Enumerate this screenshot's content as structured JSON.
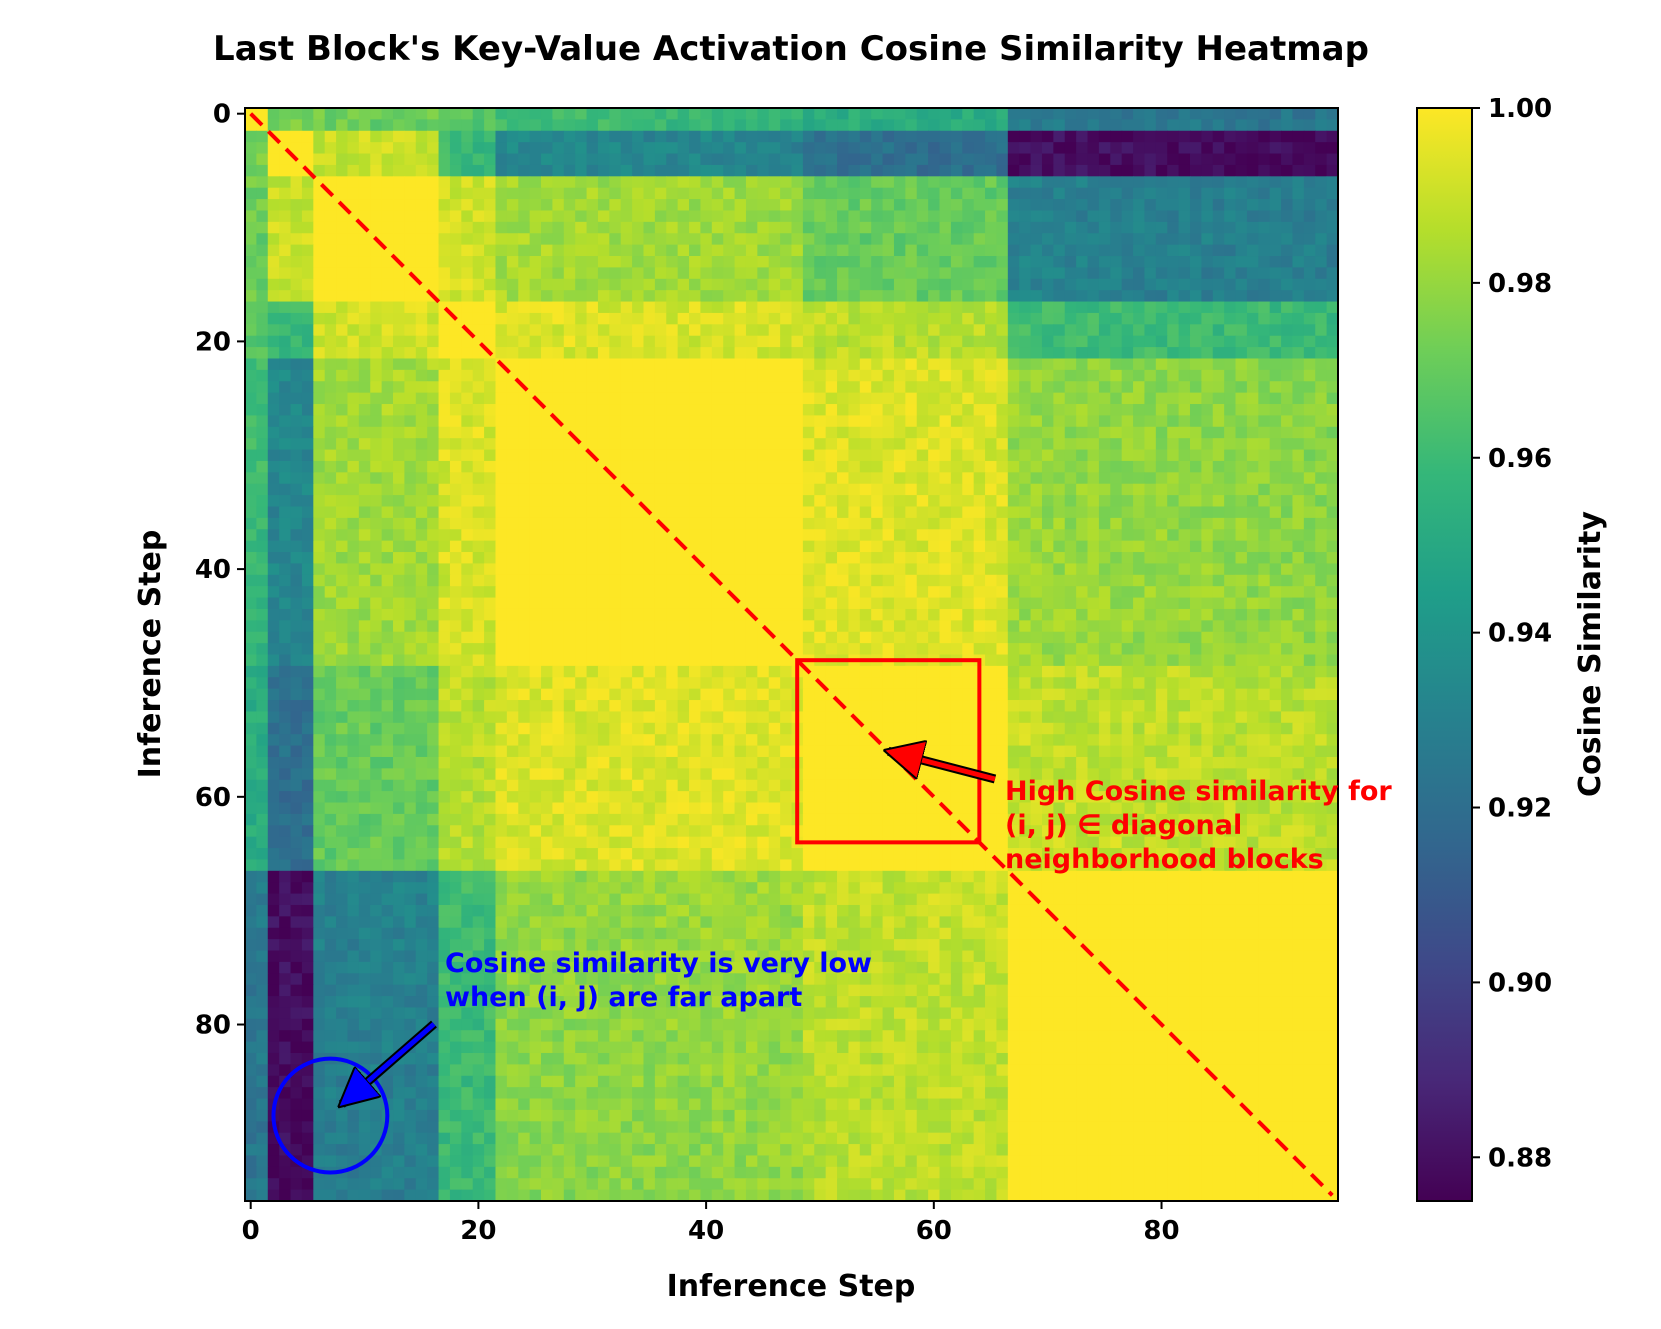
{
  "chart_data": {
    "type": "heatmap",
    "title": "Last Block's Key-Value Activation Cosine Similarity Heatmap",
    "xlabel": "Inference Step",
    "ylabel": "Inference Step",
    "n_steps": 96,
    "xlim": [
      0,
      95
    ],
    "ylim": [
      0,
      95
    ],
    "x_ticks": [
      "0",
      "20",
      "40",
      "60",
      "80"
    ],
    "y_ticks": [
      "0",
      "20",
      "40",
      "60",
      "80"
    ],
    "tick_values": [
      0,
      20,
      40,
      60,
      80
    ],
    "colorbar": {
      "label": "Cosine Similarity",
      "range": [
        0.875,
        1.0
      ],
      "ticks": [
        "0.88",
        "0.90",
        "0.92",
        "0.94",
        "0.96",
        "0.98",
        "1.00"
      ],
      "tick_values": [
        0.88,
        0.9,
        0.92,
        0.94,
        0.96,
        0.98,
        1.0
      ],
      "colormap": "viridis",
      "stops": [
        "#440154",
        "#482878",
        "#3e4a89",
        "#31688e",
        "#26828e",
        "#1f9e89",
        "#35b779",
        "#6ece58",
        "#b5de2b",
        "#fde725"
      ]
    },
    "segments": [
      {
        "start": 0,
        "end": 1
      },
      {
        "start": 2,
        "end": 5
      },
      {
        "start": 6,
        "end": 16
      },
      {
        "start": 17,
        "end": 21
      },
      {
        "start": 22,
        "end": 48
      },
      {
        "start": 49,
        "end": 66
      },
      {
        "start": 67,
        "end": 95
      }
    ],
    "block_similarity": [
      [
        1.0,
        0.975,
        0.972,
        0.968,
        0.962,
        0.958,
        0.932
      ],
      [
        0.975,
        1.0,
        0.99,
        0.96,
        0.935,
        0.925,
        0.885
      ],
      [
        0.972,
        0.99,
        1.0,
        0.992,
        0.984,
        0.974,
        0.935
      ],
      [
        0.968,
        0.96,
        0.992,
        1.0,
        0.994,
        0.99,
        0.965
      ],
      [
        0.962,
        0.935,
        0.984,
        0.994,
        1.0,
        0.996,
        0.983
      ],
      [
        0.958,
        0.925,
        0.974,
        0.99,
        0.996,
        1.0,
        0.99
      ],
      [
        0.932,
        0.885,
        0.935,
        0.965,
        0.983,
        0.99,
        1.0
      ]
    ],
    "annotations": {
      "diagonal_line": {
        "from": [
          0,
          0
        ],
        "to": [
          95,
          95
        ],
        "color": "#ff0000",
        "style": "dashed"
      },
      "highlight_box": {
        "x_range": [
          48,
          64
        ],
        "y_range": [
          48,
          64
        ],
        "color": "#ff0000"
      },
      "low_circle": {
        "center": [
          7,
          88
        ],
        "radius_steps": 5,
        "color": "#0000ff"
      },
      "red_note": {
        "lines": [
          "High Cosine similarity for",
          "(i, j) ∈  diagonal",
          "neighborhood blocks"
        ],
        "color": "#ff0000",
        "arrow_to": [
          56,
          56
        ]
      },
      "blue_note": {
        "lines": [
          "Cosine similarity is very low",
          "when (i, j) are far apart"
        ],
        "color": "#0000ff",
        "arrow_to": [
          8,
          87
        ]
      }
    }
  }
}
